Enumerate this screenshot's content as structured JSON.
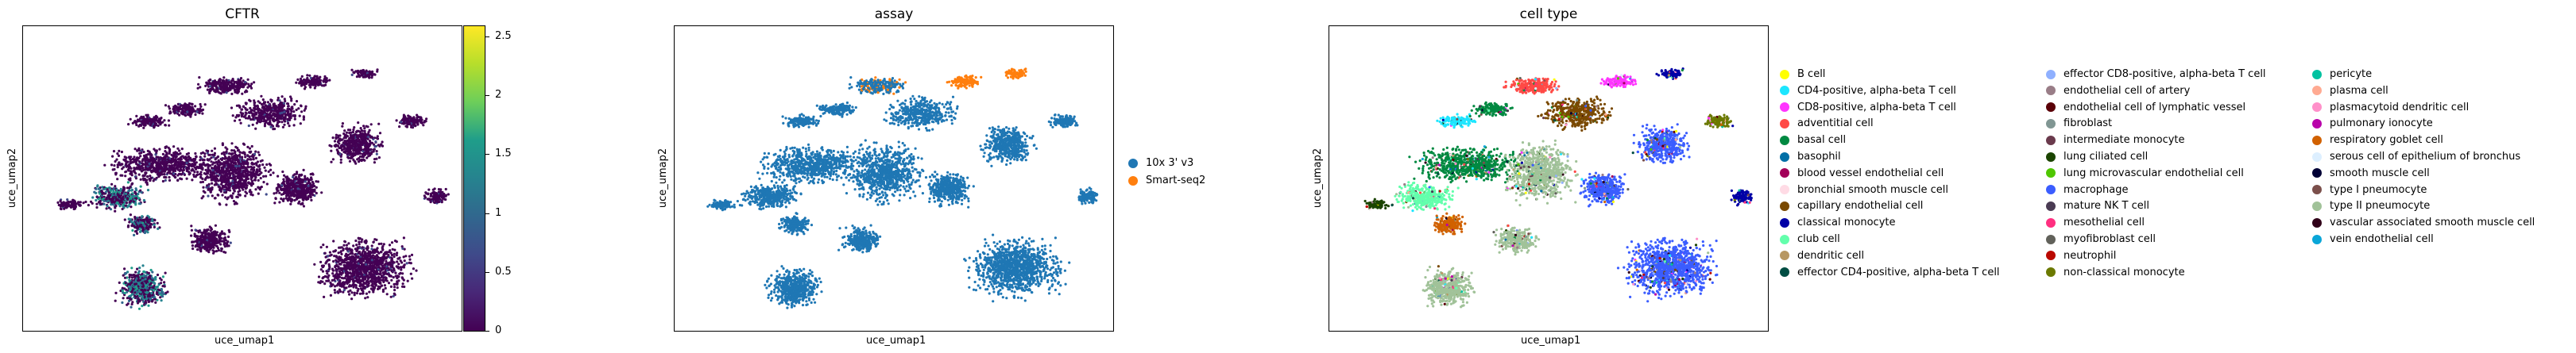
{
  "panels": [
    {
      "key": "cftr",
      "title": "CFTR",
      "xlabel": "uce_umap1",
      "ylabel": "uce_umap2"
    },
    {
      "key": "assay",
      "title": "assay",
      "xlabel": "uce_umap1",
      "ylabel": "uce_umap2"
    },
    {
      "key": "celltype",
      "title": "cell type",
      "xlabel": "uce_umap1",
      "ylabel": "uce_umap2"
    }
  ],
  "colorbar": {
    "ticks": [
      "0",
      "0.5",
      "1",
      "1.5",
      "2",
      "2.5"
    ],
    "tick_values": [
      0,
      0.5,
      1,
      1.5,
      2,
      2.5
    ],
    "range": [
      0,
      2.6
    ],
    "colormap": "viridis"
  },
  "assay_legend": [
    {
      "label": "10x 3' v3",
      "color": "#1f77b4"
    },
    {
      "label": "Smart-seq2",
      "color": "#ff7f0e"
    }
  ],
  "celltype_legend": [
    {
      "label": "B cell",
      "color": "#ffff00"
    },
    {
      "label": "CD4-positive, alpha-beta T cell",
      "color": "#1ce6ff"
    },
    {
      "label": "CD8-positive, alpha-beta T cell",
      "color": "#ff34ff"
    },
    {
      "label": "adventitial cell",
      "color": "#ff4a46"
    },
    {
      "label": "basal cell",
      "color": "#008941"
    },
    {
      "label": "basophil",
      "color": "#006fa6"
    },
    {
      "label": "blood vessel endothelial cell",
      "color": "#a30059"
    },
    {
      "label": "bronchial smooth muscle cell",
      "color": "#ffdbe5"
    },
    {
      "label": "capillary endothelial cell",
      "color": "#7a4900"
    },
    {
      "label": "classical monocyte",
      "color": "#0000a6"
    },
    {
      "label": "club cell",
      "color": "#63ffac"
    },
    {
      "label": "dendritic cell",
      "color": "#b79762"
    },
    {
      "label": "effector CD4-positive, alpha-beta T cell",
      "color": "#004d43"
    },
    {
      "label": "effector CD8-positive, alpha-beta T cell",
      "color": "#8fb0ff"
    },
    {
      "label": "endothelial cell of artery",
      "color": "#997d87"
    },
    {
      "label": "endothelial cell of lymphatic vessel",
      "color": "#5a0007"
    },
    {
      "label": "fibroblast",
      "color": "#809693"
    },
    {
      "label": "intermediate monocyte",
      "color": "#6a3a4c"
    },
    {
      "label": "lung ciliated cell",
      "color": "#1b4400"
    },
    {
      "label": "lung microvascular endothelial cell",
      "color": "#4fc601"
    },
    {
      "label": "macrophage",
      "color": "#3b5dff"
    },
    {
      "label": "mature NK T cell",
      "color": "#4a3b53"
    },
    {
      "label": "mesothelial cell",
      "color": "#ff2f80"
    },
    {
      "label": "myofibroblast cell",
      "color": "#61615a"
    },
    {
      "label": "neutrophil",
      "color": "#ba0900"
    },
    {
      "label": "non-classical monocyte",
      "color": "#6b7900"
    },
    {
      "label": "pericyte",
      "color": "#00c2a0"
    },
    {
      "label": "plasma cell",
      "color": "#ffaa92"
    },
    {
      "label": "plasmacytoid dendritic cell",
      "color": "#ff90c9"
    },
    {
      "label": "pulmonary ionocyte",
      "color": "#b903aa"
    },
    {
      "label": "respiratory goblet cell",
      "color": "#d16100"
    },
    {
      "label": "serous cell of epithelium of bronchus",
      "color": "#ddefff"
    },
    {
      "label": "smooth muscle cell",
      "color": "#000035"
    },
    {
      "label": "type I pneumocyte",
      "color": "#7b4f4b"
    },
    {
      "label": "type II pneumocyte",
      "color": "#a1c299"
    },
    {
      "label": "vascular associated smooth muscle cell",
      "color": "#300018"
    },
    {
      "label": "vein endothelial cell",
      "color": "#0aa6d8"
    }
  ],
  "chart_data": [
    {
      "type": "scatter",
      "title": "CFTR",
      "xlabel": "uce_umap1",
      "ylabel": "uce_umap2",
      "color_scale": "viridis",
      "color_range": [
        0,
        2.6
      ],
      "grid": false
    },
    {
      "type": "scatter",
      "title": "assay",
      "xlabel": "uce_umap1",
      "ylabel": "uce_umap2",
      "series": [
        {
          "name": "10x 3' v3"
        },
        {
          "name": "Smart-seq2"
        }
      ],
      "legend": "right",
      "grid": false
    },
    {
      "type": "scatter",
      "title": "cell type",
      "xlabel": "uce_umap1",
      "ylabel": "uce_umap2",
      "legend": "right",
      "grid": false
    }
  ]
}
